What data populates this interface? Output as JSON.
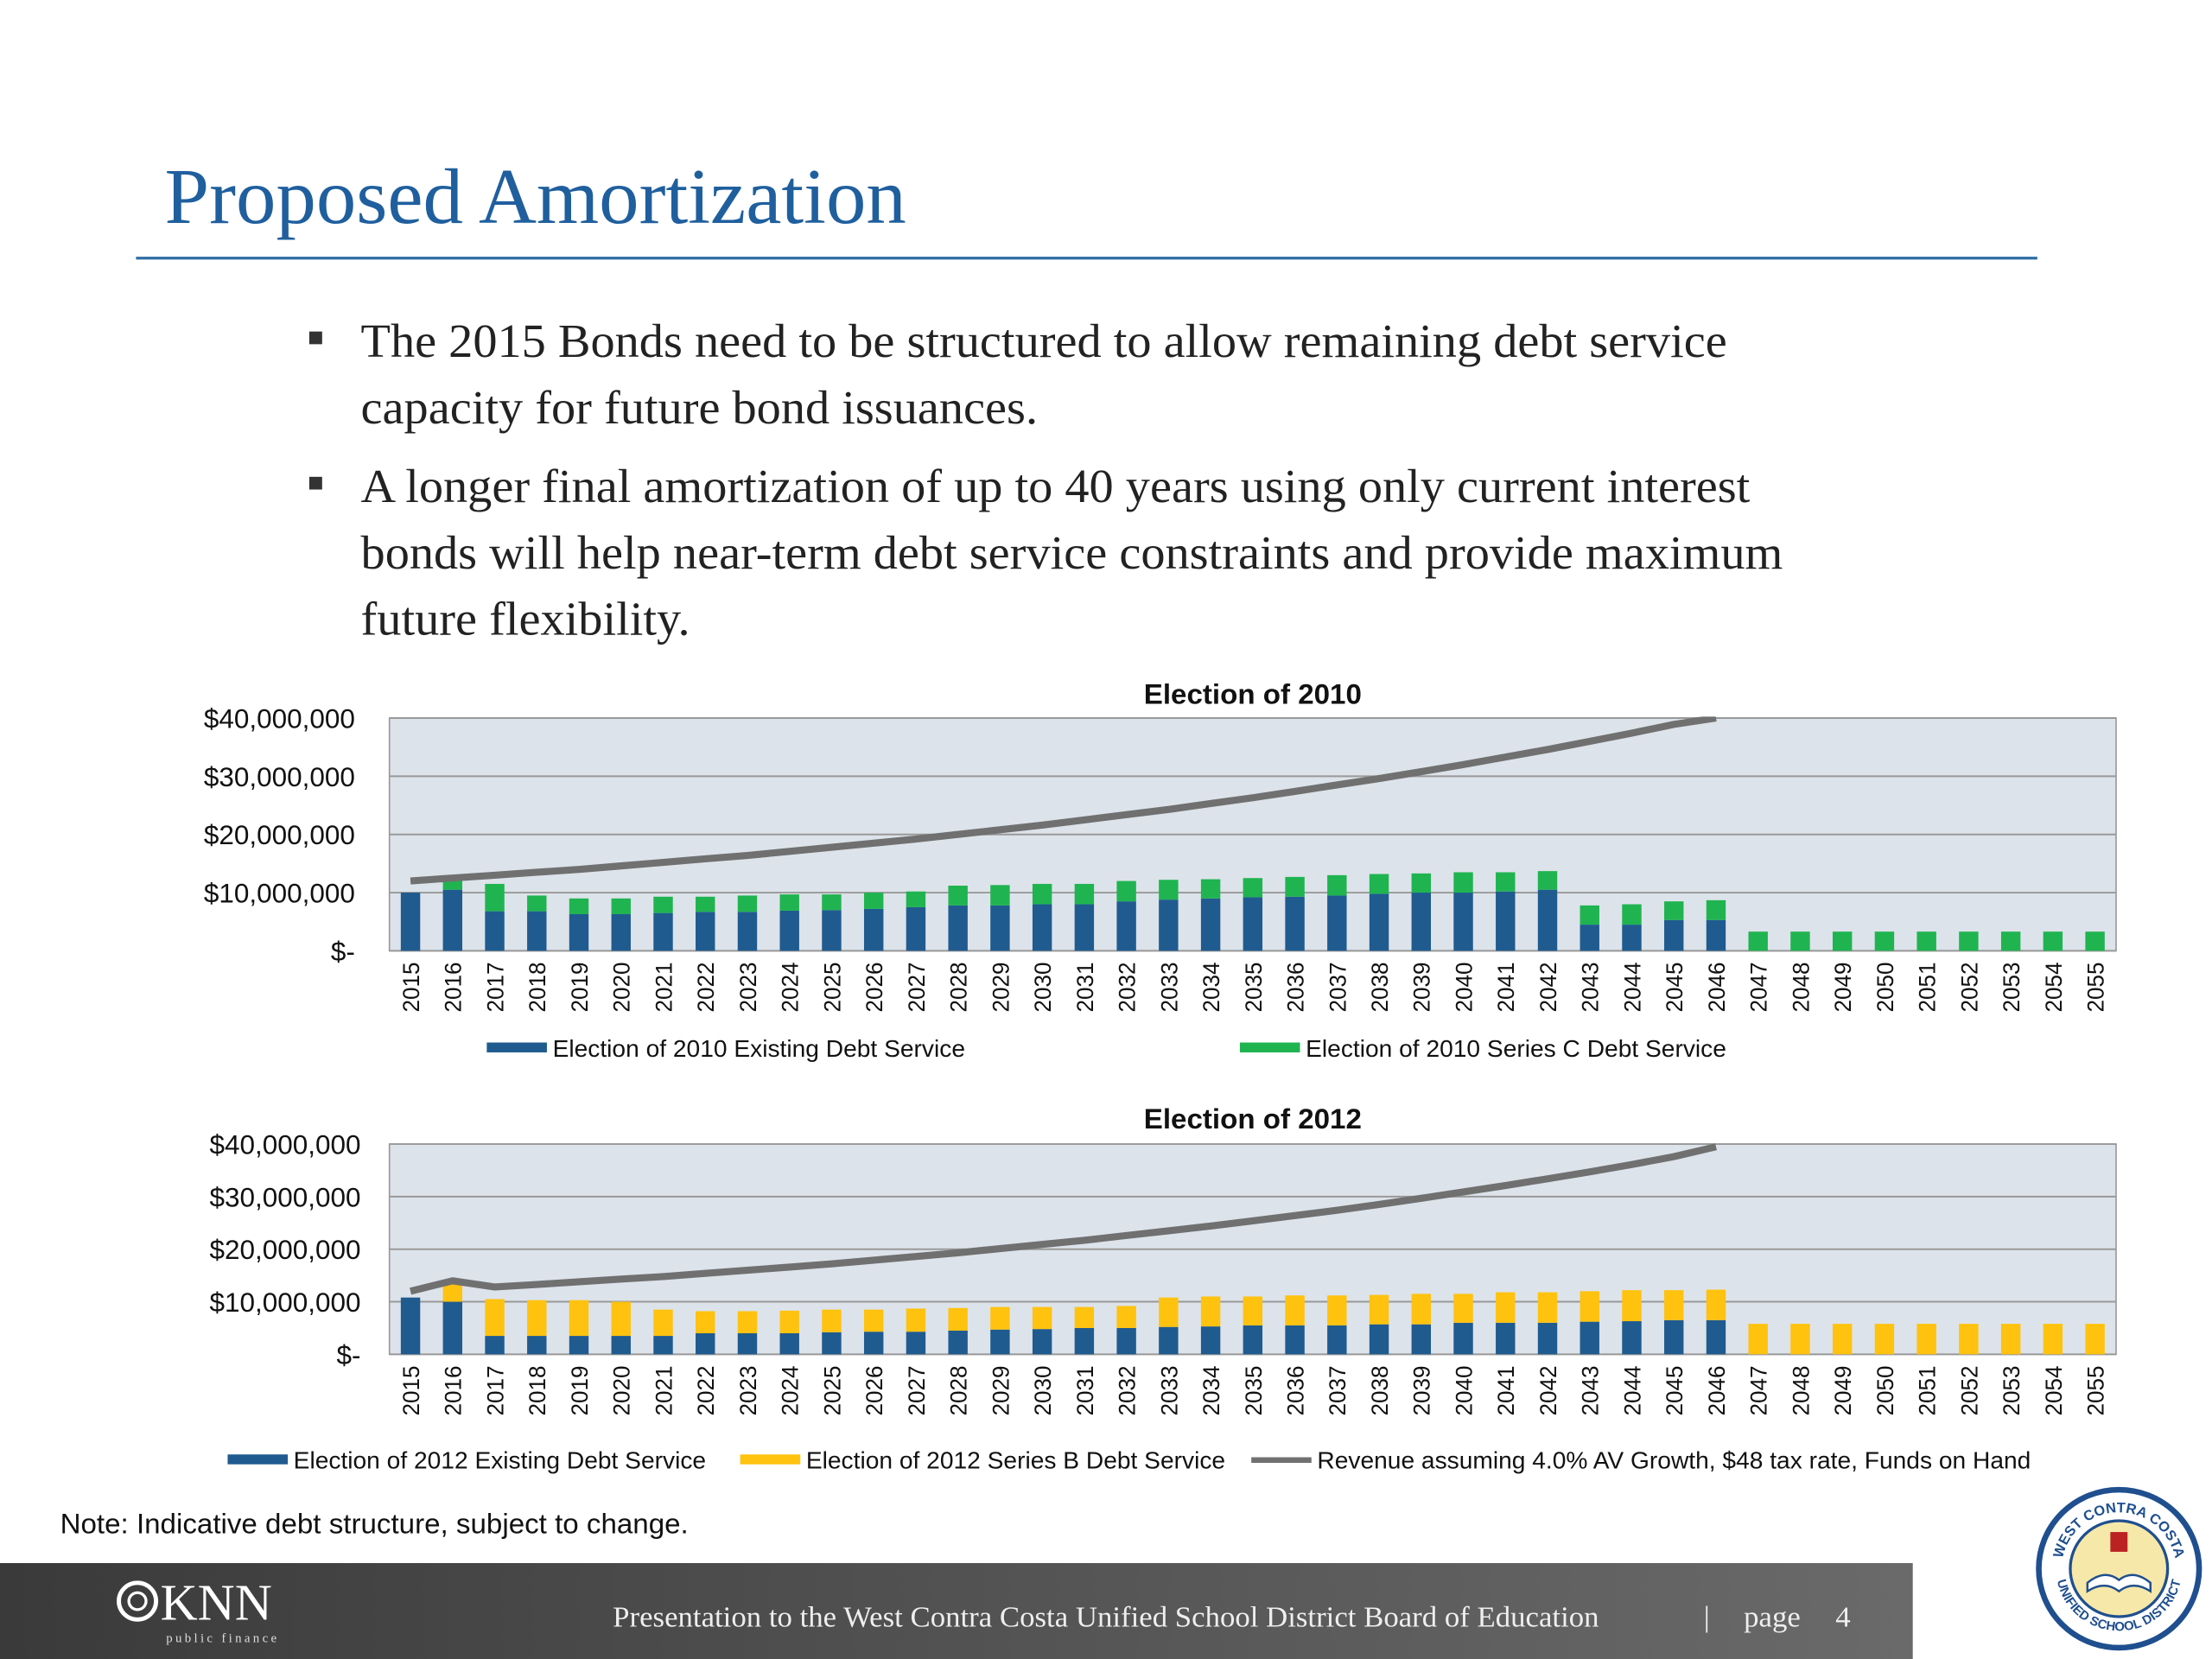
{
  "title": "Proposed Amortization",
  "bullets": [
    [
      "The 2015 Bonds need to be structured to allow remaining debt service",
      "capacity for future bond issuances."
    ],
    [
      "A longer final amortization of up to 40 years using only current interest",
      "bonds will help near-term debt service constraints and provide maximum",
      "future flexibility."
    ]
  ],
  "chart_data": [
    {
      "type": "stacked-bar-line",
      "title": "Election of 2010",
      "categories": [
        "2015",
        "2016",
        "2017",
        "2018",
        "2019",
        "2020",
        "2021",
        "2022",
        "2023",
        "2024",
        "2025",
        "2026",
        "2027",
        "2028",
        "2029",
        "2030",
        "2031",
        "2032",
        "2033",
        "2034",
        "2035",
        "2036",
        "2037",
        "2038",
        "2039",
        "2040",
        "2041",
        "2042",
        "2043",
        "2044",
        "2045",
        "2046",
        "2047",
        "2048",
        "2049",
        "2050",
        "2051",
        "2052",
        "2053",
        "2054",
        "2055"
      ],
      "ylim": [
        0,
        40000000
      ],
      "yticks": [
        {
          "value": 0,
          "label": "$-"
        },
        {
          "value": 10000000,
          "label": "$10,000,000"
        },
        {
          "value": 20000000,
          "label": "$20,000,000"
        },
        {
          "value": 30000000,
          "label": "$30,000,000"
        },
        {
          "value": 40000000,
          "label": "$40,000,000"
        }
      ],
      "grid": true,
      "series": [
        {
          "name": "Election of 2010 Existing Debt Service",
          "color": "#1f5b8f",
          "kind": "bar",
          "values": [
            10000000,
            10500000,
            6800000,
            6800000,
            6300000,
            6300000,
            6500000,
            6700000,
            6700000,
            6900000,
            7000000,
            7200000,
            7500000,
            7800000,
            7800000,
            8000000,
            8000000,
            8500000,
            8800000,
            9000000,
            9200000,
            9300000,
            9500000,
            9800000,
            10000000,
            10000000,
            10200000,
            10500000,
            4500000,
            4500000,
            5300000,
            5300000,
            0,
            0,
            0,
            0,
            0,
            0,
            0,
            0,
            0
          ]
        },
        {
          "name": "Election of 2010 Series C Debt Service",
          "color": "#1fb450",
          "kind": "bar",
          "values": [
            0,
            2000000,
            4700000,
            2700000,
            2700000,
            2700000,
            2800000,
            2600000,
            2800000,
            2800000,
            2700000,
            2800000,
            2700000,
            3400000,
            3500000,
            3500000,
            3500000,
            3500000,
            3400000,
            3300000,
            3300000,
            3400000,
            3500000,
            3400000,
            3300000,
            3500000,
            3300000,
            3200000,
            3300000,
            3500000,
            3200000,
            3400000,
            3300000,
            3300000,
            3300000,
            3300000,
            3300000,
            3300000,
            3300000,
            3300000,
            3300000
          ]
        },
        {
          "color": "#707070",
          "kind": "line",
          "values": [
            12000000,
            12500000,
            13000000,
            13500000,
            14000000,
            14600000,
            15200000,
            15800000,
            16400000,
            17100000,
            17800000,
            18500000,
            19200000,
            20000000,
            20800000,
            21600000,
            22500000,
            23400000,
            24300000,
            25300000,
            26300000,
            27400000,
            28500000,
            29600000,
            30800000,
            32000000,
            33300000,
            34600000,
            36000000,
            37400000,
            38900000,
            40000000,
            null,
            null,
            null,
            null,
            null,
            null,
            null,
            null,
            null
          ]
        }
      ]
    },
    {
      "type": "stacked-bar-line",
      "title": "Election of 2012",
      "categories": [
        "2015",
        "2016",
        "2017",
        "2018",
        "2019",
        "2020",
        "2021",
        "2022",
        "2023",
        "2024",
        "2025",
        "2026",
        "2027",
        "2028",
        "2029",
        "2030",
        "2031",
        "2032",
        "2033",
        "2034",
        "2035",
        "2036",
        "2037",
        "2038",
        "2039",
        "2040",
        "2041",
        "2042",
        "2043",
        "2044",
        "2045",
        "2046",
        "2047",
        "2048",
        "2049",
        "2050",
        "2051",
        "2052",
        "2053",
        "2054",
        "2055"
      ],
      "ylim": [
        0,
        40000000
      ],
      "yticks": [
        {
          "value": 0,
          "label": "$-"
        },
        {
          "value": 10000000,
          "label": "$10,000,000"
        },
        {
          "value": 20000000,
          "label": "$20,000,000"
        },
        {
          "value": 30000000,
          "label": "$30,000,000"
        },
        {
          "value": 40000000,
          "label": "$40,000,000"
        }
      ],
      "grid": true,
      "series": [
        {
          "name": "Election of 2012 Existing Debt Service",
          "color": "#1f5b8f",
          "kind": "bar",
          "values": [
            10800000,
            10000000,
            3500000,
            3500000,
            3500000,
            3500000,
            3500000,
            4000000,
            4000000,
            4000000,
            4200000,
            4300000,
            4300000,
            4500000,
            4700000,
            4800000,
            5000000,
            5000000,
            5200000,
            5300000,
            5500000,
            5500000,
            5500000,
            5700000,
            5700000,
            6000000,
            6000000,
            6000000,
            6200000,
            6300000,
            6500000,
            6500000,
            0,
            0,
            0,
            0,
            0,
            0,
            0,
            0,
            0
          ]
        },
        {
          "name": "Election of 2012 Series B Debt Service",
          "color": "#ffc20e",
          "kind": "bar",
          "values": [
            0,
            3500000,
            7000000,
            6800000,
            6800000,
            6500000,
            5000000,
            4200000,
            4200000,
            4300000,
            4300000,
            4200000,
            4400000,
            4300000,
            4300000,
            4200000,
            4000000,
            4200000,
            5600000,
            5700000,
            5500000,
            5700000,
            5700000,
            5600000,
            5800000,
            5500000,
            5800000,
            5800000,
            5800000,
            5900000,
            5700000,
            5800000,
            5800000,
            5800000,
            5800000,
            5800000,
            5800000,
            5800000,
            5800000,
            5800000,
            5800000
          ]
        },
        {
          "name": "Revenue assuming 4.0% AV Growth, $48 tax rate, Funds on Hand",
          "color": "#707070",
          "kind": "line",
          "values": [
            12000000,
            14000000,
            12800000,
            13300000,
            13800000,
            14300000,
            14800000,
            15400000,
            16000000,
            16600000,
            17200000,
            17900000,
            18600000,
            19300000,
            20100000,
            20900000,
            21700000,
            22600000,
            23500000,
            24400000,
            25400000,
            26400000,
            27400000,
            28500000,
            29700000,
            30900000,
            32100000,
            33400000,
            34700000,
            36100000,
            37600000,
            39500000,
            null,
            null,
            null,
            null,
            null,
            null,
            null,
            null,
            null
          ]
        }
      ]
    }
  ],
  "note": "Note: Indicative debt structure, subject to change.",
  "footer": {
    "logo": "KNN",
    "logo_sub": "public finance",
    "text": "Presentation to the West Contra Costa Unified School District Board of Education",
    "separator": "|",
    "page_label": "page",
    "page_number": "4"
  },
  "seal": {
    "top": "WEST CONTRA COSTA",
    "bottom": "UNIFIED SCHOOL DISTRICT"
  }
}
